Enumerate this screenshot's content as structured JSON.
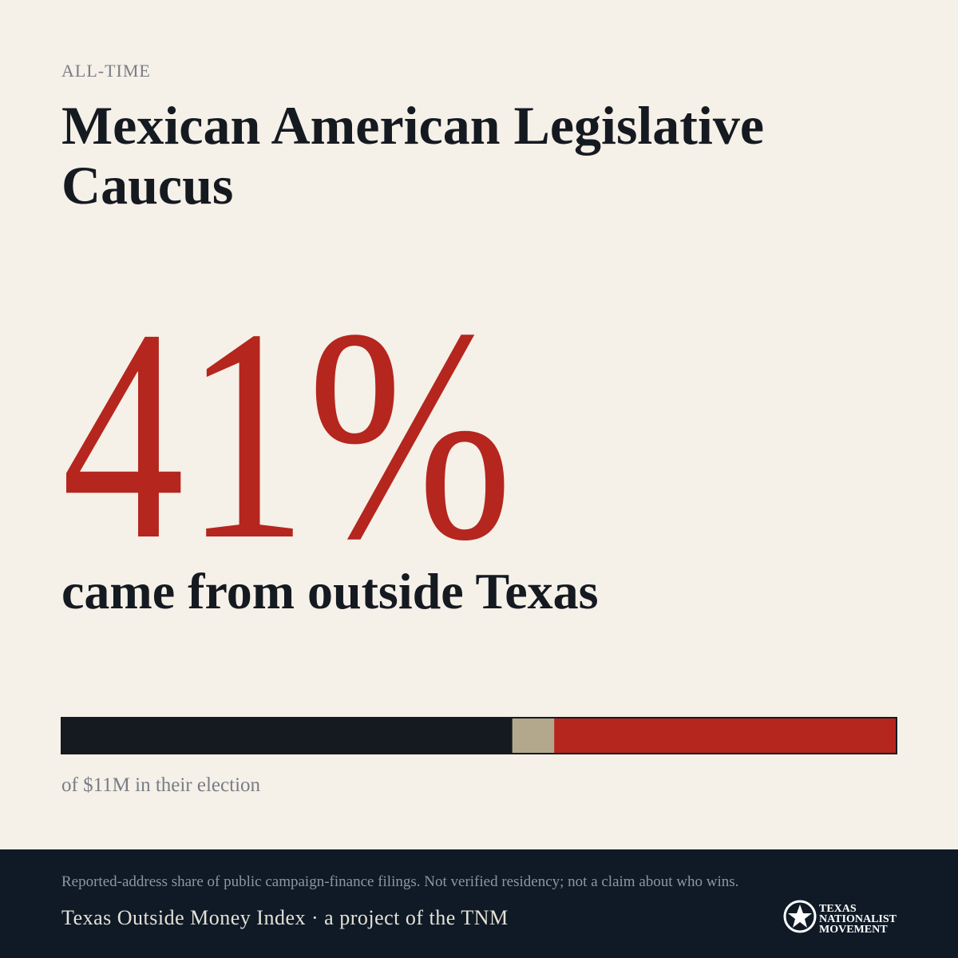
{
  "header": {
    "eyebrow": "ALL-TIME",
    "title_lines": [
      "Mexican American Legislative",
      "Caucus"
    ]
  },
  "headline": {
    "big": "41%",
    "sub": "came from outside Texas"
  },
  "bar": {
    "values": [
      54,
      5,
      41
    ],
    "colors": [
      "#151a21",
      "#b3a88c",
      "#b5261e"
    ]
  },
  "caption": "of $11M in their election",
  "footer": {
    "note": "Reported-address share of public campaign-finance filings. Not verified residency; not a claim about who wins.",
    "credit": "Texas Outside Money Index · a project of the TNM",
    "logo_lines": [
      "TEXAS",
      "NATIONALIST",
      "MOVEMENT"
    ]
  }
}
